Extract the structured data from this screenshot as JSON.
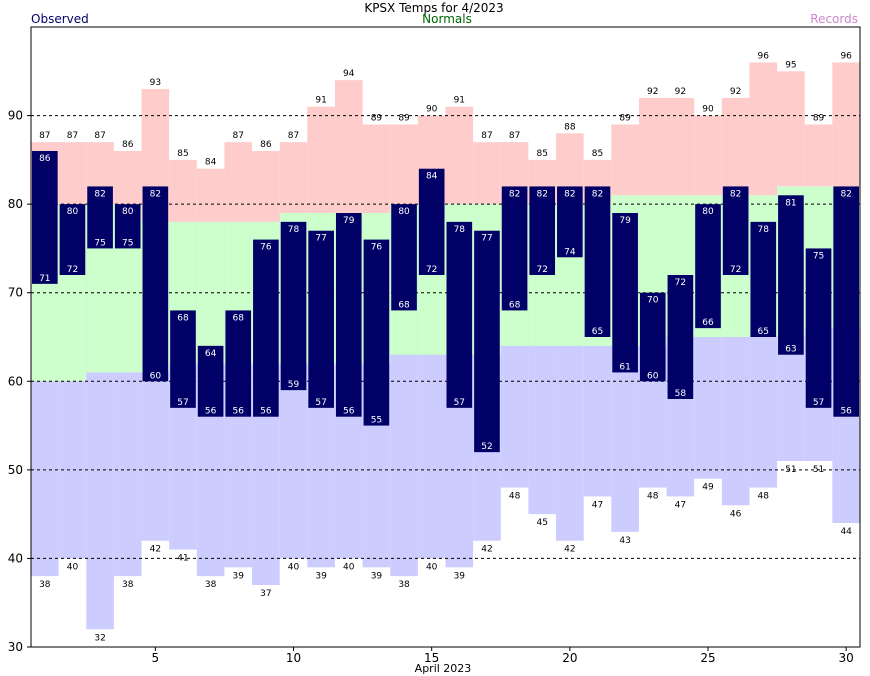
{
  "chart_data": {
    "type": "bar",
    "title": "KPSX Temps for 4/2023",
    "xlabel": "April 2023",
    "ylabel": "",
    "xlim": [
      1,
      30
    ],
    "ylim": [
      30,
      100
    ],
    "x_ticks": [
      5,
      10,
      15,
      20,
      25,
      30
    ],
    "y_ticks": [
      30,
      40,
      50,
      60,
      70,
      80,
      90
    ],
    "grid_dashed_at": [
      40,
      50,
      60,
      70,
      80,
      90
    ],
    "legend": {
      "observed": "Observed",
      "normals": "Normals",
      "records": "Records"
    },
    "colors": {
      "observed": "#000066",
      "normals": "#ccffcc",
      "records_band": "#ccccff",
      "record_high_band": "#ffcccc",
      "observed_text": "#000066",
      "normals_text": "#006600",
      "records_text": "#cc88cc",
      "axis": "#000000"
    },
    "days": [
      1,
      2,
      3,
      4,
      5,
      6,
      7,
      8,
      9,
      10,
      11,
      12,
      13,
      14,
      15,
      16,
      17,
      18,
      19,
      20,
      21,
      22,
      23,
      24,
      25,
      26,
      27,
      28,
      29,
      30
    ],
    "series": [
      {
        "name": "Observed high",
        "values": [
          86,
          80,
          82,
          80,
          82,
          68,
          64,
          68,
          76,
          78,
          77,
          79,
          76,
          80,
          84,
          78,
          77,
          82,
          82,
          82,
          82,
          79,
          70,
          72,
          80,
          82,
          78,
          81,
          75,
          82
        ]
      },
      {
        "name": "Observed low",
        "values": [
          71,
          72,
          75,
          75,
          60,
          57,
          56,
          56,
          56,
          59,
          57,
          56,
          55,
          68,
          72,
          57,
          52,
          68,
          72,
          74,
          65,
          61,
          60,
          58,
          66,
          72,
          65,
          63,
          57,
          56
        ]
      },
      {
        "name": "Record high",
        "values": [
          87,
          87,
          87,
          86,
          93,
          85,
          84,
          87,
          86,
          87,
          91,
          94,
          89,
          89,
          90,
          91,
          87,
          87,
          85,
          88,
          85,
          89,
          92,
          92,
          90,
          92,
          96,
          95,
          89,
          96
        ]
      },
      {
        "name": "Record low",
        "values": [
          38,
          40,
          32,
          38,
          42,
          41,
          38,
          39,
          37,
          40,
          39,
          40,
          39,
          38,
          40,
          39,
          42,
          48,
          45,
          42,
          47,
          43,
          48,
          47,
          49,
          46,
          48,
          51,
          51,
          44
        ]
      },
      {
        "name": "Normal high",
        "values": [
          80,
          80,
          80,
          80,
          78,
          78,
          78,
          78,
          78,
          79,
          79,
          79,
          79,
          80,
          80,
          80,
          80,
          80,
          80,
          80,
          80,
          81,
          81,
          81,
          81,
          81,
          81,
          82,
          82,
          82
        ]
      },
      {
        "name": "Normal low",
        "values": [
          60,
          60,
          61,
          61,
          61,
          62,
          62,
          62,
          62,
          62,
          62,
          62,
          62,
          63,
          63,
          63,
          63,
          64,
          64,
          64,
          64,
          64,
          64,
          65,
          65,
          65,
          65,
          65,
          66,
          66
        ]
      }
    ]
  }
}
